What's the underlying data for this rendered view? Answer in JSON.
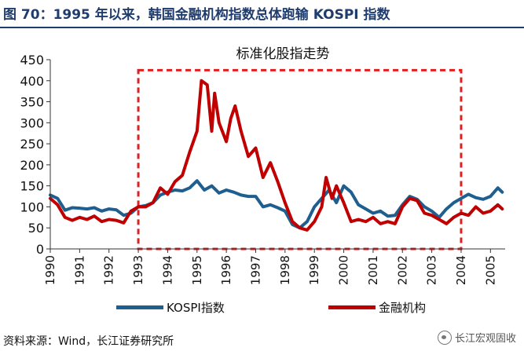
{
  "figure": {
    "caption": "图 70：1995 年以来，韩国金融机构指数总体跑输 KOSPI 指数",
    "source": "资料来源：Wind，长江证券研究所",
    "watermark": "长江宏观固收"
  },
  "colors": {
    "kospi": "#1e5f8f",
    "finance": "#c00000",
    "highlight": "#e02020",
    "caption": "#1f3c6e"
  },
  "chart_data": {
    "type": "line",
    "title": "标准化股指走势",
    "xlabel": "",
    "ylabel": "",
    "xlim": [
      1990,
      2005.5
    ],
    "ylim": [
      0,
      450
    ],
    "yticks": [
      0,
      50,
      100,
      150,
      200,
      250,
      300,
      350,
      400,
      450
    ],
    "xticks": [
      "1990",
      "1991",
      "1992",
      "1993",
      "1994",
      "1995",
      "1996",
      "1997",
      "1998",
      "1999",
      "2000",
      "2001",
      "2002",
      "2003",
      "2004",
      "2005"
    ],
    "highlight_box": {
      "x": [
        1993,
        2004
      ],
      "y": [
        0,
        425
      ],
      "style": "dashed"
    },
    "series": [
      {
        "name": "KOSPI指数",
        "x": [
          1990.0,
          1990.25,
          1990.5,
          1990.75,
          1991.0,
          1991.25,
          1991.5,
          1991.75,
          1992.0,
          1992.25,
          1992.5,
          1992.75,
          1993.0,
          1993.25,
          1993.5,
          1993.75,
          1994.0,
          1994.25,
          1994.5,
          1994.75,
          1995.0,
          1995.25,
          1995.5,
          1995.75,
          1996.0,
          1996.25,
          1996.5,
          1996.75,
          1997.0,
          1997.25,
          1997.5,
          1997.75,
          1998.0,
          1998.25,
          1998.5,
          1998.75,
          1999.0,
          1999.25,
          1999.5,
          1999.75,
          2000.0,
          2000.25,
          2000.5,
          2000.75,
          2001.0,
          2001.25,
          2001.5,
          2001.75,
          2002.0,
          2002.25,
          2002.5,
          2002.75,
          2003.0,
          2003.25,
          2003.5,
          2003.75,
          2004.0,
          2004.25,
          2004.5,
          2004.75,
          2005.0,
          2005.25,
          2005.4
        ],
        "values": [
          128,
          120,
          92,
          98,
          97,
          95,
          98,
          90,
          95,
          93,
          80,
          85,
          100,
          103,
          110,
          128,
          135,
          140,
          138,
          145,
          162,
          140,
          150,
          133,
          140,
          135,
          128,
          125,
          125,
          100,
          105,
          98,
          90,
          58,
          50,
          65,
          100,
          120,
          140,
          110,
          150,
          135,
          105,
          95,
          85,
          90,
          78,
          80,
          105,
          125,
          118,
          100,
          90,
          75,
          95,
          110,
          120,
          130,
          122,
          118,
          125,
          145,
          135
        ]
      },
      {
        "name": "金融机构",
        "x": [
          1990.0,
          1990.25,
          1990.5,
          1990.75,
          1991.0,
          1991.25,
          1991.5,
          1991.75,
          1992.0,
          1992.25,
          1992.5,
          1992.75,
          1993.0,
          1993.25,
          1993.5,
          1993.75,
          1994.0,
          1994.25,
          1994.5,
          1994.75,
          1995.0,
          1995.15,
          1995.35,
          1995.5,
          1995.6,
          1995.75,
          1996.0,
          1996.15,
          1996.3,
          1996.5,
          1996.75,
          1997.0,
          1997.25,
          1997.5,
          1997.75,
          1998.0,
          1998.25,
          1998.5,
          1998.75,
          1999.0,
          1999.25,
          1999.4,
          1999.6,
          1999.75,
          2000.0,
          2000.25,
          2000.5,
          2000.75,
          2001.0,
          2001.25,
          2001.5,
          2001.75,
          2002.0,
          2002.25,
          2002.5,
          2002.75,
          2003.0,
          2003.25,
          2003.5,
          2003.75,
          2004.0,
          2004.25,
          2004.5,
          2004.75,
          2005.0,
          2005.25,
          2005.4
        ],
        "values": [
          120,
          105,
          75,
          68,
          75,
          70,
          78,
          65,
          70,
          68,
          62,
          90,
          100,
          100,
          110,
          145,
          130,
          160,
          175,
          230,
          280,
          400,
          390,
          280,
          370,
          300,
          255,
          310,
          340,
          280,
          220,
          240,
          170,
          205,
          160,
          110,
          65,
          50,
          45,
          65,
          100,
          170,
          120,
          150,
          110,
          65,
          70,
          65,
          75,
          60,
          65,
          60,
          100,
          120,
          115,
          85,
          80,
          70,
          60,
          75,
          85,
          80,
          100,
          85,
          90,
          105,
          95
        ]
      }
    ]
  }
}
